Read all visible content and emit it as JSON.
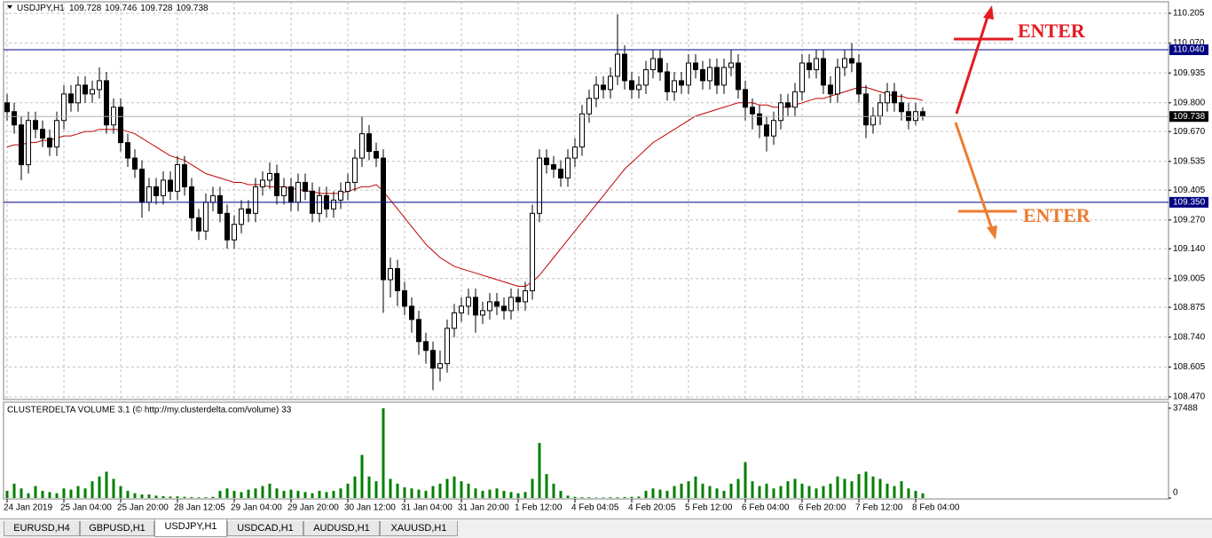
{
  "chart_data": [
    {
      "type": "candlestick",
      "symbol": "USDJPY,H1",
      "ohlc": [
        109.728,
        109.746,
        109.728,
        109.738
      ],
      "categories": [
        "24 Jan 2019",
        null,
        null,
        null,
        null,
        null,
        null,
        null,
        "25 Jan 04:00",
        null,
        null,
        null,
        null,
        null,
        null,
        null,
        "25 Jan 20:00",
        null,
        null,
        null,
        null,
        null,
        null,
        null,
        "28 Jan 12:05",
        null,
        null,
        null,
        null,
        null,
        null,
        null,
        "29 Jan 04:00",
        null,
        null,
        null,
        null,
        null,
        null,
        null,
        "29 Jan 20:00",
        null,
        null,
        null,
        null,
        null,
        null,
        null,
        "30 Jan 12:00",
        null,
        null,
        null,
        null,
        null,
        null,
        null,
        "31 Jan 04:00",
        null,
        null,
        null,
        null,
        null,
        null,
        null,
        "31 Jan 20:00",
        null,
        null,
        null,
        null,
        null,
        null,
        null,
        "1 Feb 12:00",
        null,
        null,
        null,
        null,
        null,
        null,
        null,
        "4 Feb 04:05",
        null,
        null,
        null,
        null,
        null,
        null,
        null,
        "4 Feb 20:05",
        null,
        null,
        null,
        null,
        null,
        null,
        null,
        "5 Feb 12:00",
        null,
        null,
        null,
        null,
        null,
        null,
        null,
        "6 Feb 04:00",
        null,
        null,
        null,
        null,
        null,
        null,
        null,
        "6 Feb 20:00",
        null,
        null,
        null,
        null,
        null,
        null,
        null,
        "7 Feb 12:00",
        null,
        null,
        null,
        null,
        null,
        null,
        null,
        "8 Feb 04:00",
        null
      ],
      "open": [
        109.8,
        109.76,
        109.7,
        109.52,
        109.72,
        109.68,
        109.64,
        109.6,
        109.72,
        109.84,
        109.8,
        109.88,
        109.84,
        109.86,
        109.9,
        109.7,
        109.78,
        109.62,
        109.55,
        109.5,
        109.35,
        109.42,
        109.38,
        109.45,
        109.4,
        109.52,
        109.42,
        109.28,
        109.22,
        109.35,
        109.38,
        109.3,
        109.18,
        109.25,
        109.32,
        109.3,
        109.42,
        109.45,
        109.48,
        109.38,
        109.42,
        109.35,
        109.44,
        109.4,
        109.3,
        109.38,
        109.32,
        109.36,
        109.4,
        109.44,
        109.55,
        109.66,
        109.58,
        109.55,
        109.0,
        109.05,
        108.95,
        108.88,
        108.82,
        108.72,
        108.68,
        108.6,
        108.62,
        108.78,
        108.85,
        108.88,
        108.92,
        108.84,
        108.86,
        108.9,
        108.88,
        108.86,
        108.92,
        108.9,
        108.95,
        109.3,
        109.55,
        109.52,
        109.5,
        109.46,
        109.55,
        109.6,
        109.75,
        109.82,
        109.88,
        109.86,
        109.92,
        110.02,
        109.9,
        109.86,
        109.88,
        109.95,
        110.0,
        109.94,
        109.85,
        109.9,
        109.88,
        109.98,
        109.95,
        109.9,
        109.96,
        109.88,
        109.96,
        109.98,
        109.86,
        109.78,
        109.75,
        109.7,
        109.65,
        109.72,
        109.8,
        109.78,
        109.85,
        109.98,
        109.95,
        110.0,
        109.88,
        109.84,
        109.96,
        110.0,
        109.98,
        109.84,
        109.7,
        109.74,
        109.8,
        109.85,
        109.8,
        109.76,
        109.72,
        109.76
      ],
      "high": [
        109.84,
        109.8,
        109.74,
        109.76,
        109.76,
        109.72,
        109.68,
        109.76,
        109.88,
        109.88,
        109.92,
        109.92,
        109.9,
        109.96,
        109.94,
        109.82,
        109.82,
        109.66,
        109.59,
        109.54,
        109.46,
        109.46,
        109.49,
        109.49,
        109.56,
        109.56,
        109.46,
        109.32,
        109.39,
        109.42,
        109.42,
        109.34,
        109.29,
        109.36,
        109.36,
        109.46,
        109.49,
        109.53,
        109.52,
        109.46,
        109.46,
        109.48,
        109.48,
        109.44,
        109.42,
        109.42,
        109.4,
        109.44,
        109.48,
        109.59,
        109.74,
        109.7,
        109.62,
        109.59,
        109.1,
        109.09,
        108.99,
        108.92,
        108.86,
        108.76,
        108.72,
        108.68,
        108.82,
        108.89,
        108.92,
        108.96,
        108.96,
        108.9,
        108.94,
        108.94,
        108.92,
        108.96,
        108.96,
        108.99,
        109.34,
        109.59,
        109.59,
        109.56,
        109.54,
        109.59,
        109.64,
        109.79,
        109.86,
        109.92,
        109.92,
        109.96,
        110.2,
        110.06,
        109.94,
        109.92,
        109.99,
        110.04,
        110.04,
        109.98,
        109.94,
        109.94,
        110.02,
        110.02,
        109.99,
        110.0,
        110.0,
        110.0,
        110.04,
        110.02,
        109.9,
        109.82,
        109.79,
        109.74,
        109.76,
        109.84,
        109.84,
        109.89,
        110.02,
        110.02,
        110.04,
        110.04,
        109.92,
        110.0,
        110.04,
        110.07,
        110.02,
        109.88,
        109.78,
        109.84,
        109.89,
        109.89,
        109.84,
        109.8,
        109.8,
        109.78
      ],
      "low": [
        109.72,
        109.66,
        109.45,
        109.48,
        109.64,
        109.6,
        109.56,
        109.56,
        109.68,
        109.76,
        109.76,
        109.8,
        109.8,
        109.82,
        109.66,
        109.66,
        109.58,
        109.51,
        109.46,
        109.28,
        109.31,
        109.34,
        109.34,
        109.36,
        109.36,
        109.38,
        109.22,
        109.18,
        109.18,
        109.31,
        109.26,
        109.14,
        109.14,
        109.21,
        109.26,
        109.26,
        109.38,
        109.41,
        109.34,
        109.34,
        109.31,
        109.31,
        109.36,
        109.26,
        109.26,
        109.28,
        109.28,
        109.32,
        109.36,
        109.4,
        109.51,
        109.54,
        109.51,
        108.85,
        108.92,
        108.88,
        108.84,
        108.76,
        108.66,
        108.62,
        108.5,
        108.54,
        108.58,
        108.74,
        108.81,
        108.84,
        108.76,
        108.8,
        108.82,
        108.84,
        108.82,
        108.82,
        108.86,
        108.86,
        108.91,
        109.26,
        109.48,
        109.46,
        109.42,
        109.42,
        109.51,
        109.56,
        109.71,
        109.78,
        109.82,
        109.82,
        109.88,
        109.86,
        109.82,
        109.82,
        109.84,
        109.91,
        109.9,
        109.81,
        109.81,
        109.84,
        109.84,
        109.91,
        109.86,
        109.86,
        109.84,
        109.84,
        109.92,
        109.82,
        109.72,
        109.68,
        109.64,
        109.58,
        109.61,
        109.68,
        109.74,
        109.74,
        109.81,
        109.91,
        109.91,
        109.84,
        109.8,
        109.8,
        109.92,
        109.94,
        109.8,
        109.64,
        109.66,
        109.7,
        109.76,
        109.76,
        109.72,
        109.68,
        109.7,
        109.72
      ],
      "close": [
        109.76,
        109.7,
        109.52,
        109.72,
        109.68,
        109.64,
        109.6,
        109.72,
        109.84,
        109.8,
        109.88,
        109.84,
        109.86,
        109.9,
        109.7,
        109.78,
        109.62,
        109.55,
        109.5,
        109.35,
        109.42,
        109.38,
        109.45,
        109.4,
        109.52,
        109.42,
        109.28,
        109.22,
        109.35,
        109.38,
        109.3,
        109.18,
        109.25,
        109.32,
        109.3,
        109.42,
        109.45,
        109.48,
        109.38,
        109.42,
        109.35,
        109.44,
        109.4,
        109.3,
        109.38,
        109.32,
        109.36,
        109.4,
        109.44,
        109.55,
        109.66,
        109.58,
        109.55,
        109.0,
        109.05,
        108.95,
        108.88,
        108.82,
        108.72,
        108.68,
        108.6,
        108.62,
        108.78,
        108.85,
        108.88,
        108.92,
        108.84,
        108.86,
        108.9,
        108.88,
        108.86,
        108.92,
        108.9,
        108.95,
        109.3,
        109.55,
        109.52,
        109.5,
        109.46,
        109.55,
        109.6,
        109.75,
        109.82,
        109.88,
        109.86,
        109.92,
        110.02,
        109.9,
        109.86,
        109.88,
        109.95,
        110.0,
        109.94,
        109.85,
        109.9,
        109.88,
        109.98,
        109.95,
        109.9,
        109.96,
        109.88,
        109.96,
        109.98,
        109.86,
        109.78,
        109.75,
        109.7,
        109.65,
        109.72,
        109.8,
        109.78,
        109.85,
        109.98,
        109.95,
        110.0,
        109.88,
        109.84,
        109.96,
        110.0,
        109.98,
        109.84,
        109.7,
        109.74,
        109.8,
        109.85,
        109.8,
        109.76,
        109.72,
        109.76,
        109.74
      ],
      "bull_color": "#ffffff",
      "bear_color": "#000000",
      "ma": {
        "color": "#c00000",
        "values": [
          109.6,
          109.61,
          109.61,
          109.62,
          109.62,
          109.63,
          109.63,
          109.64,
          109.65,
          109.65,
          109.66,
          109.67,
          109.67,
          109.68,
          109.68,
          109.68,
          109.68,
          109.67,
          109.66,
          109.64,
          109.62,
          109.6,
          109.58,
          109.56,
          109.55,
          109.54,
          109.52,
          109.5,
          109.48,
          109.47,
          109.46,
          109.45,
          109.44,
          109.44,
          109.43,
          109.43,
          109.43,
          109.42,
          109.42,
          109.42,
          109.41,
          109.41,
          109.4,
          109.4,
          109.39,
          109.39,
          109.39,
          109.39,
          109.4,
          109.41,
          109.42,
          109.42,
          109.43,
          109.4,
          109.36,
          109.32,
          109.28,
          109.24,
          109.2,
          109.16,
          109.13,
          109.1,
          109.08,
          109.06,
          109.05,
          109.04,
          109.03,
          109.02,
          109.01,
          109.0,
          108.99,
          108.98,
          108.97,
          108.97,
          108.99,
          109.02,
          109.06,
          109.1,
          109.14,
          109.18,
          109.22,
          109.26,
          109.3,
          109.34,
          109.38,
          109.42,
          109.46,
          109.5,
          109.53,
          109.56,
          109.59,
          109.62,
          109.64,
          109.66,
          109.68,
          109.7,
          109.72,
          109.74,
          109.75,
          109.76,
          109.77,
          109.78,
          109.79,
          109.8,
          109.8,
          109.8,
          109.79,
          109.79,
          109.78,
          109.78,
          109.78,
          109.79,
          109.8,
          109.81,
          109.82,
          109.82,
          109.83,
          109.84,
          109.85,
          109.86,
          109.87,
          109.87,
          109.86,
          109.85,
          109.84,
          109.83,
          109.83,
          109.82,
          109.82,
          109.81
        ]
      },
      "ylim": [
        108.458,
        110.257
      ],
      "yticks": [
        110.205,
        {
          "value": 110.07,
          "label": "110.070"
        },
        109.935,
        {
          "value": 109.8,
          "label": "109.800"
        },
        {
          "value": 109.67,
          "label": "109.670"
        },
        109.535,
        109.405,
        {
          "value": 109.27,
          "label": "109.270"
        },
        {
          "value": 109.14,
          "label": "109.140"
        },
        109.005,
        108.875,
        {
          "value": 108.74,
          "label": "108.740"
        },
        108.605,
        {
          "value": 108.47,
          "label": "108.470"
        }
      ],
      "grid": true,
      "levels": [
        {
          "value": 110.04,
          "label": "110.040",
          "color": "#000080"
        },
        {
          "value": 109.35,
          "label": "109.350",
          "color": "#000080"
        }
      ],
      "last": 109.738,
      "annotations": [
        "ENTER",
        "ENTER"
      ]
    },
    {
      "type": "bar",
      "title": "CLUSTERDELTA VOLUME 3.1 (© http://my.clusterdelta.com/volume) 33",
      "color": "#008000",
      "values": [
        3000,
        6000,
        4000,
        2000,
        5000,
        3000,
        2500,
        2000,
        4000,
        3500,
        5000,
        4000,
        7000,
        9000,
        11000,
        8000,
        5000,
        3000,
        2000,
        1500,
        1500,
        1000,
        800,
        600,
        700,
        500,
        400,
        300,
        300,
        500,
        3000,
        4000,
        3000,
        2500,
        3500,
        4000,
        5000,
        6000,
        4000,
        3000,
        3500,
        3000,
        2500,
        2000,
        3000,
        2500,
        3000,
        4000,
        6000,
        9000,
        18000,
        9000,
        7000,
        37488,
        8000,
        6000,
        4500,
        4000,
        3500,
        3000,
        5000,
        6000,
        8000,
        9000,
        7000,
        6000,
        4000,
        3000,
        3500,
        4000,
        3000,
        2500,
        2000,
        2500,
        8000,
        23000,
        10000,
        6000,
        3000,
        1000,
        500,
        300,
        300,
        200,
        200,
        300,
        300,
        400,
        500,
        600,
        3000,
        4000,
        3500,
        3000,
        5000,
        6000,
        7000,
        9000,
        6000,
        5000,
        4000,
        3000,
        6000,
        8000,
        15000,
        7000,
        5000,
        6000,
        4000,
        5000,
        7000,
        8000,
        6000,
        5000,
        4000,
        5000,
        6000,
        9000,
        8000,
        7000,
        10000,
        11000,
        9000,
        8000,
        6000,
        5000,
        7000,
        4000,
        3000,
        2000
      ],
      "ylim": [
        0,
        40000
      ],
      "yticks": [
        0,
        37488
      ]
    }
  ],
  "tabs": [
    "EURUSD,H4",
    "GBPUSD,H1",
    "USDJPY,H1",
    "USDCAD,H1",
    "AUDUSD,H1",
    "XAUUSD,H1"
  ]
}
